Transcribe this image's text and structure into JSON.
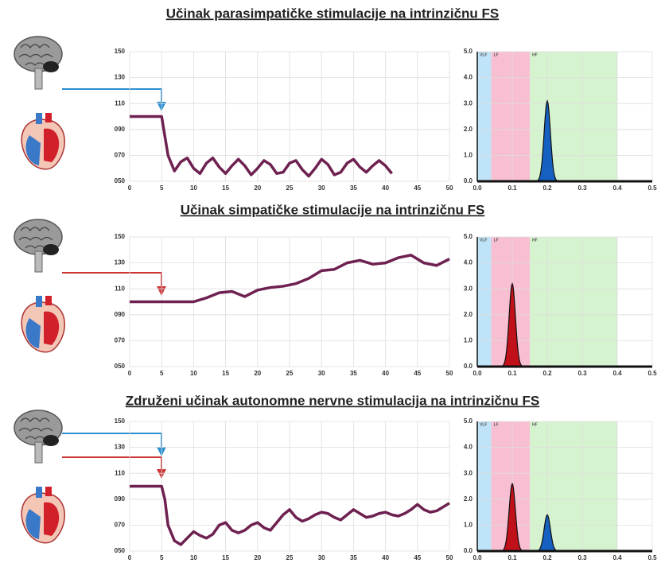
{
  "chart_data": [
    {
      "type": "line",
      "title": "Učinak parasimpatičke stimulacije na intrinzičnu FS",
      "color": "#6e2150",
      "grid": true,
      "xlim": [
        0,
        50
      ],
      "xticks": [
        0,
        5,
        10,
        15,
        20,
        25,
        30,
        35,
        40,
        45,
        50
      ],
      "ylim": [
        50,
        150
      ],
      "yticks": [
        {
          "value": 50,
          "label": "050"
        },
        {
          "value": 70,
          "label": "070"
        },
        {
          "value": 90,
          "label": "090"
        },
        110,
        130,
        150
      ],
      "x": [
        0,
        5,
        6,
        7,
        8,
        9,
        10,
        11,
        12,
        13,
        14,
        15,
        16,
        17,
        18,
        19,
        20,
        21,
        22,
        23,
        24,
        25,
        26,
        27,
        28,
        29,
        30,
        31,
        32,
        33,
        34,
        35,
        36,
        37,
        38,
        39,
        40,
        41
      ],
      "values": [
        100,
        100,
        70,
        58,
        65,
        68,
        60,
        56,
        64,
        68,
        61,
        56,
        62,
        67,
        62,
        55,
        60,
        66,
        63,
        56,
        57,
        64,
        66,
        59,
        54,
        60,
        67,
        63,
        55,
        57,
        64,
        67,
        61,
        57,
        62,
        66,
        62,
        56
      ]
    },
    {
      "type": "spectrum",
      "grid": true,
      "xlim": [
        0,
        0.5
      ],
      "xticks": [
        {
          "value": 0,
          "label": "0.0"
        },
        0.1,
        0.2,
        0.3,
        0.4,
        0.5
      ],
      "ylim": [
        0,
        5
      ],
      "yticks": [
        {
          "value": 0,
          "label": "0.0"
        },
        {
          "value": 1,
          "label": "1.0"
        },
        {
          "value": 2,
          "label": "2.0"
        },
        {
          "value": 3,
          "label": "3.0"
        },
        {
          "value": 4,
          "label": "4.0"
        },
        {
          "value": 5,
          "label": "5.0"
        }
      ],
      "bands": [
        {
          "label": "VLF",
          "range": [
            0,
            0.04
          ],
          "color": "#bfe3f7"
        },
        {
          "label": "LF",
          "range": [
            0.04,
            0.15
          ],
          "color": "#f8bfd2"
        },
        {
          "label": "HF",
          "range": [
            0.15,
            0.4
          ],
          "color": "#d6f3cf"
        }
      ],
      "peaks": [
        {
          "center": 0.2,
          "height": 3.1,
          "color": "#1560c0"
        }
      ]
    },
    {
      "type": "line",
      "title": "Učinak simpatičke stimulacije na intrinzičnu FS",
      "color": "#6e2150",
      "grid": true,
      "xlim": [
        0,
        50
      ],
      "xticks": [
        0,
        5,
        10,
        15,
        20,
        25,
        30,
        35,
        40,
        45,
        50
      ],
      "ylim": [
        50,
        150
      ],
      "yticks": [
        {
          "value": 50,
          "label": "050"
        },
        {
          "value": 70,
          "label": "070"
        },
        {
          "value": 90,
          "label": "090"
        },
        110,
        130,
        150
      ],
      "x": [
        0,
        2,
        4,
        6,
        8,
        10,
        12,
        14,
        16,
        18,
        20,
        22,
        24,
        26,
        28,
        30,
        32,
        34,
        36,
        38,
        40,
        42,
        44,
        46,
        48,
        50
      ],
      "values": [
        100,
        100,
        100,
        100,
        100,
        100,
        103,
        107,
        108,
        104,
        109,
        111,
        112,
        114,
        118,
        124,
        125,
        130,
        132,
        129,
        130,
        134,
        136,
        130,
        128,
        133
      ]
    },
    {
      "type": "spectrum",
      "grid": true,
      "xlim": [
        0,
        0.5
      ],
      "xticks": [
        {
          "value": 0,
          "label": "0.0"
        },
        0.1,
        0.2,
        0.3,
        0.4,
        0.5
      ],
      "ylim": [
        0,
        5
      ],
      "yticks": [
        {
          "value": 0,
          "label": "0.0"
        },
        {
          "value": 1,
          "label": "1.0"
        },
        {
          "value": 2,
          "label": "2.0"
        },
        {
          "value": 3,
          "label": "3.0"
        },
        {
          "value": 4,
          "label": "4.0"
        },
        {
          "value": 5,
          "label": "5.0"
        }
      ],
      "bands": [
        {
          "label": "VLF",
          "range": [
            0,
            0.04
          ],
          "color": "#bfe3f7"
        },
        {
          "label": "LF",
          "range": [
            0.04,
            0.15
          ],
          "color": "#f8bfd2"
        },
        {
          "label": "HF",
          "range": [
            0.15,
            0.4
          ],
          "color": "#d6f3cf"
        }
      ],
      "peaks": [
        {
          "center": 0.1,
          "height": 3.2,
          "color": "#c0101a"
        }
      ]
    },
    {
      "type": "line",
      "title": "Združeni učinak autonomne nervne stimulacija na intrinzičnu FS",
      "color": "#6e2150",
      "grid": true,
      "xlim": [
        0,
        50
      ],
      "xticks": [
        0,
        5,
        10,
        15,
        20,
        25,
        30,
        35,
        40,
        45,
        50
      ],
      "ylim": [
        50,
        150
      ],
      "yticks": [
        {
          "value": 50,
          "label": "050"
        },
        {
          "value": 70,
          "label": "070"
        },
        {
          "value": 90,
          "label": "090"
        },
        110,
        130,
        150
      ],
      "x": [
        0,
        5,
        5.5,
        6,
        7,
        8,
        9,
        10,
        11,
        12,
        13,
        14,
        15,
        16,
        17,
        18,
        19,
        20,
        21,
        22,
        23,
        24,
        25,
        26,
        27,
        28,
        29,
        30,
        31,
        32,
        33,
        34,
        35,
        36,
        37,
        38,
        39,
        40,
        41,
        42,
        43,
        44,
        45,
        46,
        47,
        48,
        49,
        50
      ],
      "values": [
        100,
        100,
        90,
        70,
        58,
        55,
        60,
        65,
        62,
        60,
        63,
        70,
        72,
        66,
        64,
        66,
        70,
        72,
        68,
        66,
        72,
        78,
        82,
        76,
        73,
        75,
        78,
        80,
        79,
        76,
        74,
        78,
        82,
        79,
        76,
        77,
        79,
        80,
        78,
        77,
        79,
        82,
        86,
        82,
        80,
        81,
        84,
        87
      ]
    },
    {
      "type": "spectrum",
      "grid": true,
      "xlim": [
        0,
        0.5
      ],
      "xticks": [
        {
          "value": 0,
          "label": "0.0"
        },
        0.1,
        0.2,
        0.3,
        0.4,
        0.5
      ],
      "ylim": [
        0,
        5
      ],
      "yticks": [
        {
          "value": 0,
          "label": "0.0"
        },
        {
          "value": 1,
          "label": "1.0"
        },
        {
          "value": 2,
          "label": "2.0"
        },
        {
          "value": 3,
          "label": "3.0"
        },
        {
          "value": 4,
          "label": "4.0"
        },
        {
          "value": 5,
          "label": "5.0"
        }
      ],
      "bands": [
        {
          "label": "VLF",
          "range": [
            0,
            0.04
          ],
          "color": "#bfe3f7"
        },
        {
          "label": "LF",
          "range": [
            0.04,
            0.15
          ],
          "color": "#f8bfd2"
        },
        {
          "label": "HF",
          "range": [
            0.15,
            0.4
          ],
          "color": "#d6f3cf"
        }
      ],
      "peaks": [
        {
          "center": 0.1,
          "height": 2.6,
          "color": "#c0101a"
        },
        {
          "center": 0.2,
          "height": 1.4,
          "color": "#1560c0"
        }
      ]
    }
  ]
}
